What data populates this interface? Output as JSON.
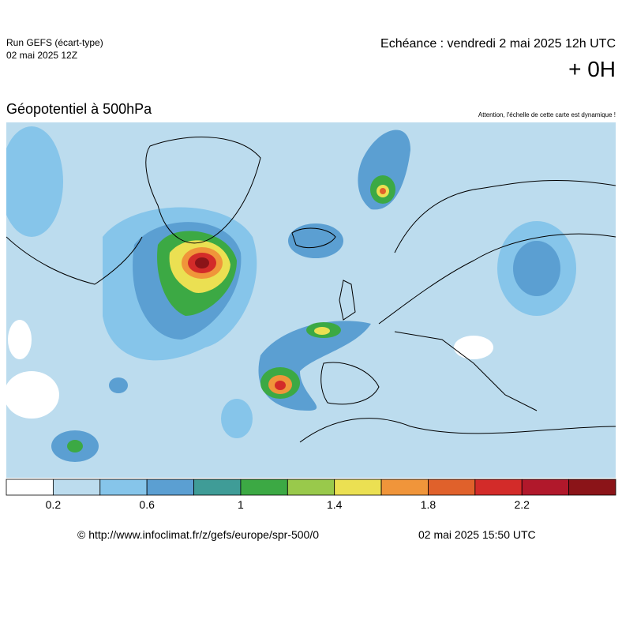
{
  "header": {
    "run": "Run GEFS (écart-type)",
    "run_date": "02 mai 2025 12Z",
    "forecast": "Echéance : vendredi 2 mai 2025 12h UTC",
    "lead": "+ 0H"
  },
  "map": {
    "title": "Géopotentiel à 500hPa",
    "warning": "Attention, l'échelle de cette carte est dynamique !"
  },
  "colorbar": {
    "colors": [
      "#ffffff",
      "#bcdcee",
      "#86c5ea",
      "#5b9fd2",
      "#3f9c97",
      "#3ca944",
      "#99c94b",
      "#ebe052",
      "#f0953a",
      "#e0612b",
      "#d32b29",
      "#b1182b",
      "#8b1418"
    ],
    "labels": [
      "0.2",
      "0.6",
      "1",
      "1.4",
      "1.8",
      "2.2"
    ]
  },
  "footer": {
    "url": "© http://www.infoclimat.fr/z/gefs/europe/spr-500/0",
    "generated": "02 mai 2025 15:50 UTC"
  }
}
